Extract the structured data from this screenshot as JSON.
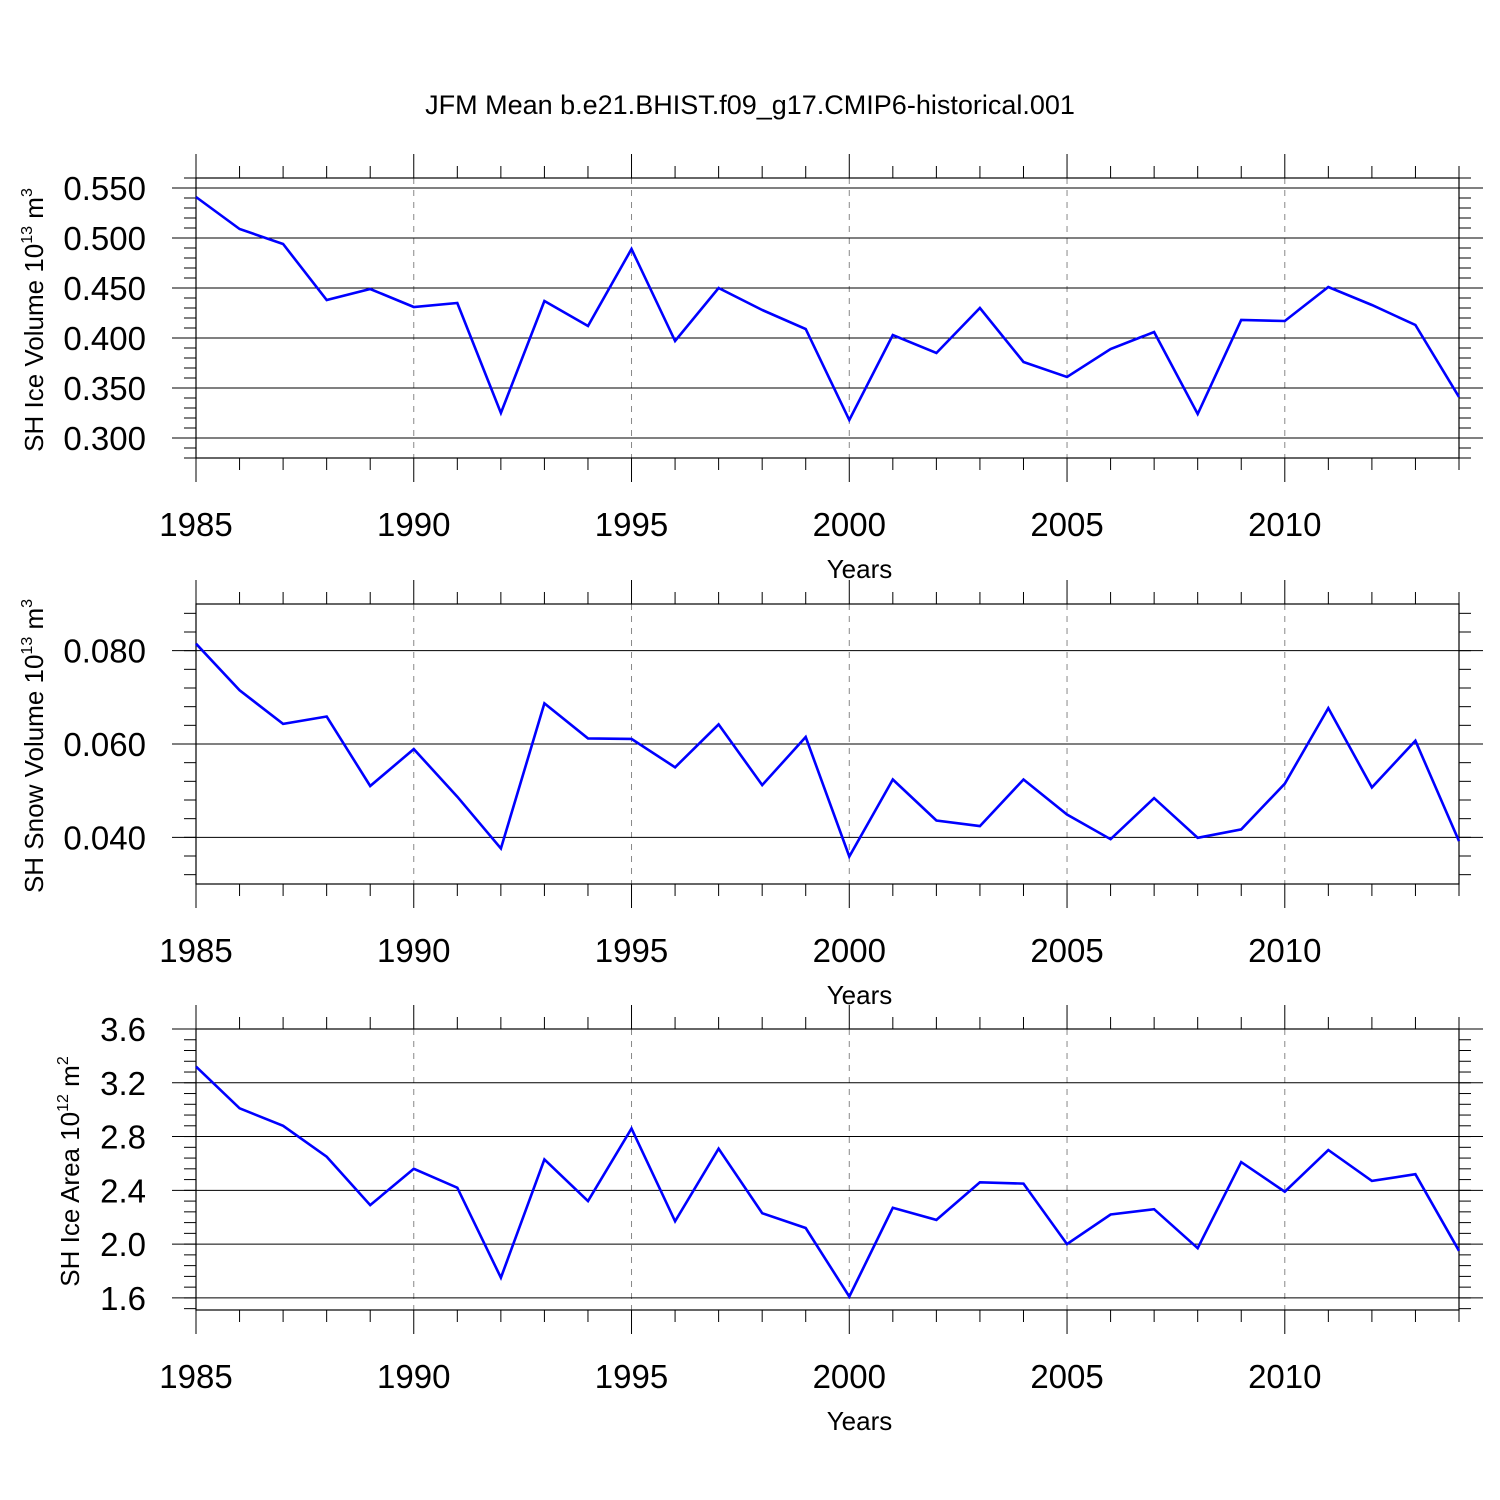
{
  "title": "JFM Mean b.e21.BHIST.f09_g17.CMIP6-historical.001",
  "line_color": "#0000ff",
  "chart_data": [
    {
      "type": "line",
      "title": "JFM Mean b.e21.BHIST.f09_g17.CMIP6-historical.001",
      "xlabel": "Years",
      "ylabel": {
        "text": "SH Ice Volume 10",
        "exp": "13",
        "unit": " m",
        "unit_exp": "3"
      },
      "xlim": [
        1985,
        2014
      ],
      "xticks": [
        "1985",
        "1990",
        "1995",
        "2000",
        "2005",
        "2010"
      ],
      "ylim": [
        0.28,
        0.56
      ],
      "yticks": [
        "0.300",
        "0.350",
        "0.400",
        "0.450",
        "0.500",
        "0.550"
      ],
      "series": [
        {
          "name": "SH Ice Volume",
          "x": [
            1985,
            1986,
            1987,
            1988,
            1989,
            1990,
            1991,
            1992,
            1993,
            1994,
            1995,
            1996,
            1997,
            1998,
            1999,
            2000,
            2001,
            2002,
            2003,
            2004,
            2005,
            2006,
            2007,
            2008,
            2009,
            2010,
            2011,
            2012,
            2013,
            2014
          ],
          "values": [
            0.541,
            0.509,
            0.494,
            0.438,
            0.449,
            0.431,
            0.435,
            0.325,
            0.437,
            0.412,
            0.489,
            0.397,
            0.45,
            0.428,
            0.409,
            0.318,
            0.403,
            0.385,
            0.43,
            0.376,
            0.361,
            0.389,
            0.406,
            0.324,
            0.418,
            0.417,
            0.451,
            0.433,
            0.413,
            0.341
          ]
        }
      ]
    },
    {
      "type": "line",
      "xlabel": "Years",
      "ylabel": {
        "text": "SH Snow Volume 10",
        "exp": "13",
        "unit": " m",
        "unit_exp": "3"
      },
      "xlim": [
        1985,
        2014
      ],
      "xticks": [
        "1985",
        "1990",
        "1995",
        "2000",
        "2005",
        "2010"
      ],
      "ylim": [
        0.03,
        0.09
      ],
      "yticks": [
        "0.040",
        "0.060",
        "0.080"
      ],
      "series": [
        {
          "name": "SH Snow Volume",
          "x": [
            1985,
            1986,
            1987,
            1988,
            1989,
            1990,
            1991,
            1992,
            1993,
            1994,
            1995,
            1996,
            1997,
            1998,
            1999,
            2000,
            2001,
            2002,
            2003,
            2004,
            2005,
            2006,
            2007,
            2008,
            2009,
            2010,
            2011,
            2012,
            2013,
            2014
          ],
          "values": [
            0.0815,
            0.0715,
            0.0643,
            0.0659,
            0.051,
            0.0589,
            0.0487,
            0.0376,
            0.0687,
            0.0612,
            0.0611,
            0.055,
            0.0642,
            0.0512,
            0.0615,
            0.0359,
            0.0524,
            0.0436,
            0.0424,
            0.0524,
            0.0449,
            0.0396,
            0.0484,
            0.0399,
            0.0417,
            0.0515,
            0.0677,
            0.0507,
            0.0607,
            0.0392
          ]
        }
      ]
    },
    {
      "type": "line",
      "xlabel": "Years",
      "ylabel": {
        "text": "SH Ice Area 10",
        "exp": "12",
        "unit": " m",
        "unit_exp": "2"
      },
      "xlim": [
        1985,
        2014
      ],
      "xticks": [
        "1985",
        "1990",
        "1995",
        "2000",
        "2005",
        "2010"
      ],
      "ylim": [
        1.51,
        3.6
      ],
      "yticks": [
        "1.6",
        "2.0",
        "2.4",
        "2.8",
        "3.2",
        "3.6"
      ],
      "series": [
        {
          "name": "SH Ice Area",
          "x": [
            1985,
            1986,
            1987,
            1988,
            1989,
            1990,
            1991,
            1992,
            1993,
            1994,
            1995,
            1996,
            1997,
            1998,
            1999,
            2000,
            2001,
            2002,
            2003,
            2004,
            2005,
            2006,
            2007,
            2008,
            2009,
            2010,
            2011,
            2012,
            2013,
            2014
          ],
          "values": [
            3.32,
            3.01,
            2.88,
            2.65,
            2.29,
            2.56,
            2.42,
            1.75,
            2.63,
            2.32,
            2.86,
            2.17,
            2.71,
            2.23,
            2.12,
            1.61,
            2.27,
            2.18,
            2.46,
            2.45,
            2.0,
            2.22,
            2.26,
            1.97,
            2.61,
            2.39,
            2.7,
            2.47,
            2.52,
            1.95
          ]
        }
      ]
    }
  ]
}
